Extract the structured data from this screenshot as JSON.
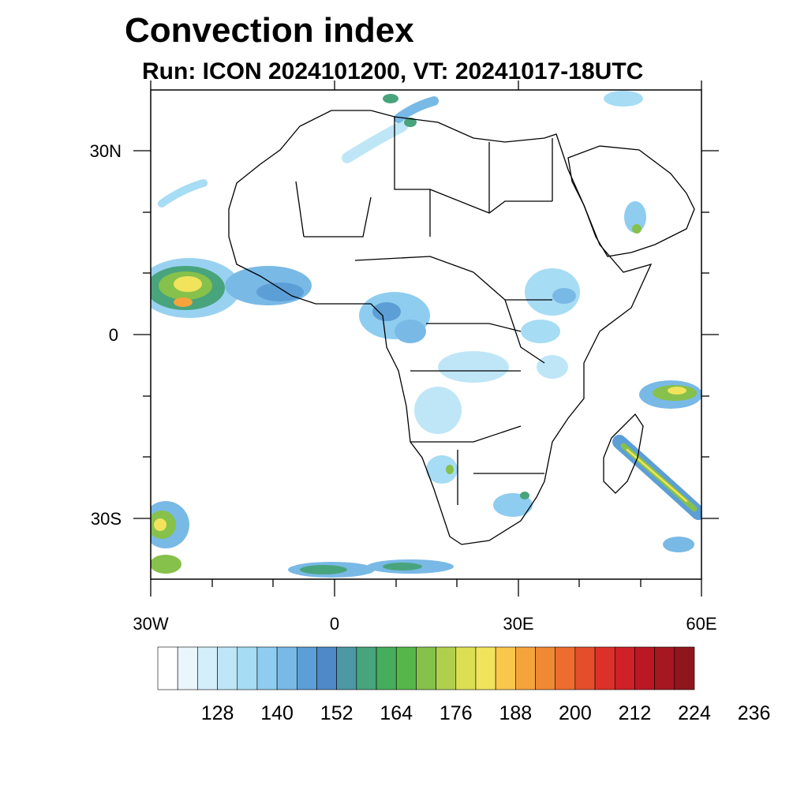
{
  "header": {
    "title": "Convection index",
    "subtitle": "Run: ICON 2024101200,  VT: 20241017-18UTC"
  },
  "map": {
    "projection": "cylindrical equidistant",
    "lon_range": [
      -30,
      60
    ],
    "lat_range": [
      -40,
      40
    ],
    "lon_tick_labels": [
      "30W",
      "0",
      "30E",
      "60E"
    ],
    "lat_tick_labels": [
      "30N",
      "0",
      "30S"
    ],
    "ocean_color": "#ffffff",
    "border_color": "#000000"
  },
  "colorbar": {
    "colors": [
      "#ffffff",
      "#eaf6fc",
      "#d4eefa",
      "#bfe6f7",
      "#a6dcf4",
      "#8ecdef",
      "#79b9e6",
      "#5c9ed6",
      "#4f89c7",
      "#4c98a5",
      "#48a47c",
      "#45ad5c",
      "#56b64a",
      "#86c14b",
      "#b1cf4e",
      "#dbe053",
      "#f2e35c",
      "#f8c74c",
      "#f5a43c",
      "#f08933",
      "#ec6d2e",
      "#e54e2a",
      "#dc3129",
      "#cf2127",
      "#bb1824",
      "#a51721",
      "#8f161d"
    ],
    "labels": [
      "128",
      "140",
      "152",
      "164",
      "176",
      "188",
      "200",
      "212",
      "224",
      "236"
    ]
  }
}
